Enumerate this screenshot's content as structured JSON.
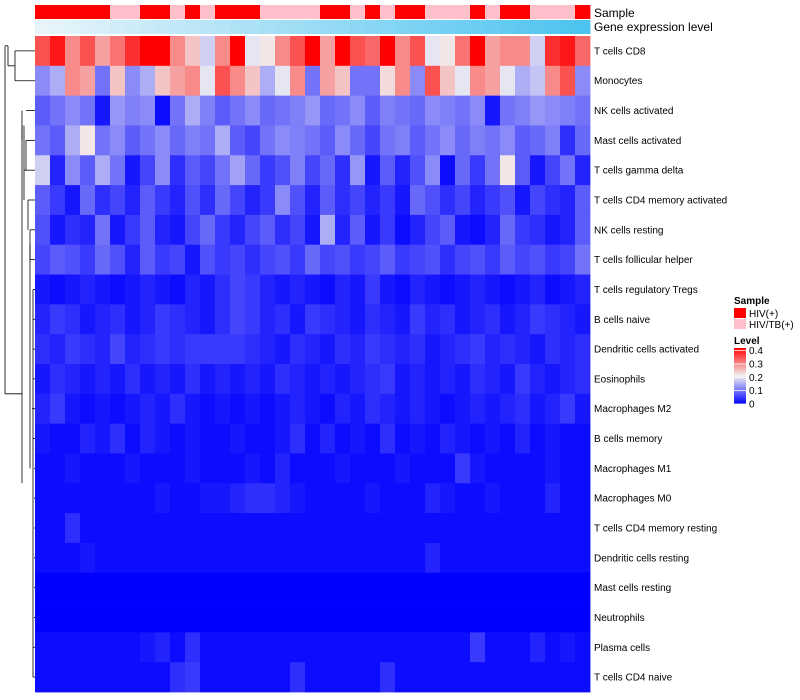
{
  "chart_data": {
    "type": "heatmap",
    "annotation_labels": [
      "Sample",
      "Gene expression level"
    ],
    "rows": [
      "T cells CD8",
      "Monocytes",
      "NK cells activated",
      "Mast cells activated",
      "T cells gamma delta",
      "T cells CD4 memory activated",
      "NK cells resting",
      "T cells follicular helper",
      "T cells regulatory  Tregs",
      "B cells naive",
      "Dendritic cells activated",
      "Eosinophils",
      "Macrophages M2",
      "B cells memory",
      "Macrophages M1",
      "Macrophages M0",
      "T cells CD4 memory resting",
      "Dendritic cells resting",
      "Mast cells resting",
      "Neutrophils",
      "Plasma cells",
      "T cells CD4 naive"
    ],
    "n_columns": 37,
    "sample_groups": [
      "HIV(+)",
      "HIV(+)",
      "HIV(+)",
      "HIV(+)",
      "HIV(+)",
      "HIV/TB(+)",
      "HIV/TB(+)",
      "HIV(+)",
      "HIV(+)",
      "HIV/TB(+)",
      "HIV(+)",
      "HIV/TB(+)",
      "HIV(+)",
      "HIV(+)",
      "HIV(+)",
      "HIV/TB(+)",
      "HIV/TB(+)",
      "HIV/TB(+)",
      "HIV/TB(+)",
      "HIV(+)",
      "HIV(+)",
      "HIV/TB(+)",
      "HIV(+)",
      "HIV/TB(+)",
      "HIV(+)",
      "HIV(+)",
      "HIV/TB(+)",
      "HIV/TB(+)",
      "HIV/TB(+)",
      "HIV(+)",
      "HIV/TB(+)",
      "HIV(+)",
      "HIV(+)",
      "HIV/TB(+)",
      "HIV/TB(+)",
      "HIV/TB(+)",
      "HIV(+)"
    ],
    "values": [
      [
        0.35,
        0.4,
        0.3,
        0.35,
        0.28,
        0.32,
        0.38,
        0.42,
        0.42,
        0.3,
        0.25,
        0.18,
        0.3,
        0.42,
        0.2,
        0.22,
        0.3,
        0.35,
        0.42,
        0.28,
        0.42,
        0.35,
        0.33,
        0.42,
        0.3,
        0.35,
        0.2,
        0.22,
        0.32,
        0.42,
        0.28,
        0.3,
        0.3,
        0.18,
        0.38,
        0.4,
        0.33
      ],
      [
        0.12,
        0.15,
        0.3,
        0.28,
        0.1,
        0.25,
        0.12,
        0.15,
        0.25,
        0.28,
        0.3,
        0.2,
        0.35,
        0.3,
        0.25,
        0.15,
        0.2,
        0.3,
        0.1,
        0.28,
        0.25,
        0.1,
        0.1,
        0.23,
        0.3,
        0.12,
        0.35,
        0.25,
        0.2,
        0.3,
        0.28,
        0.2,
        0.15,
        0.17,
        0.3,
        0.35,
        0.12
      ],
      [
        0.08,
        0.1,
        0.12,
        0.1,
        0.02,
        0.13,
        0.11,
        0.12,
        0.01,
        0.1,
        0.15,
        0.11,
        0.08,
        0.1,
        0.12,
        0.09,
        0.1,
        0.11,
        0.13,
        0.09,
        0.1,
        0.12,
        0.08,
        0.11,
        0.1,
        0.09,
        0.12,
        0.11,
        0.1,
        0.12,
        0.02,
        0.1,
        0.11,
        0.13,
        0.12,
        0.11,
        0.1
      ],
      [
        0.1,
        0.08,
        0.15,
        0.22,
        0.1,
        0.12,
        0.08,
        0.1,
        0.12,
        0.09,
        0.11,
        0.1,
        0.15,
        0.08,
        0.06,
        0.1,
        0.12,
        0.11,
        0.1,
        0.08,
        0.12,
        0.09,
        0.06,
        0.1,
        0.11,
        0.08,
        0.1,
        0.12,
        0.09,
        0.11,
        0.1,
        0.12,
        0.08,
        0.09,
        0.11,
        0.04,
        0.09
      ],
      [
        0.18,
        0.03,
        0.12,
        0.08,
        0.15,
        0.1,
        0.02,
        0.06,
        0.12,
        0.04,
        0.08,
        0.06,
        0.1,
        0.14,
        0.09,
        0.05,
        0.07,
        0.11,
        0.06,
        0.09,
        0.04,
        0.13,
        0.02,
        0.08,
        0.03,
        0.07,
        0.12,
        0.01,
        0.09,
        0.05,
        0.1,
        0.22,
        0.08,
        0.02,
        0.06,
        0.1,
        0.03
      ],
      [
        0.08,
        0.05,
        0.02,
        0.09,
        0.04,
        0.06,
        0.03,
        0.08,
        0.05,
        0.03,
        0.07,
        0.04,
        0.09,
        0.06,
        0.03,
        0.05,
        0.12,
        0.07,
        0.03,
        0.08,
        0.04,
        0.06,
        0.03,
        0.05,
        0.02,
        0.09,
        0.07,
        0.04,
        0.06,
        0.03,
        0.05,
        0.07,
        0.02,
        0.06,
        0.04,
        0.03,
        0.08
      ],
      [
        0.07,
        0.02,
        0.04,
        0.03,
        0.1,
        0.02,
        0.05,
        0.08,
        0.03,
        0.02,
        0.06,
        0.09,
        0.05,
        0.03,
        0.06,
        0.08,
        0.04,
        0.06,
        0.02,
        0.15,
        0.03,
        0.08,
        0.02,
        0.05,
        0.01,
        0.03,
        0.06,
        0.08,
        0.02,
        0.01,
        0.03,
        0.09,
        0.05,
        0.04,
        0.02,
        0.03,
        0.08
      ],
      [
        0.06,
        0.08,
        0.07,
        0.05,
        0.09,
        0.07,
        0.03,
        0.08,
        0.05,
        0.06,
        0.02,
        0.07,
        0.05,
        0.06,
        0.04,
        0.06,
        0.07,
        0.05,
        0.09,
        0.06,
        0.07,
        0.05,
        0.06,
        0.08,
        0.05,
        0.06,
        0.07,
        0.04,
        0.06,
        0.07,
        0.05,
        0.08,
        0.06,
        0.07,
        0.05,
        0.06,
        0.1
      ],
      [
        0.02,
        0.01,
        0.02,
        0.03,
        0.02,
        0.01,
        0.02,
        0.03,
        0.02,
        0.01,
        0.03,
        0.02,
        0.04,
        0.06,
        0.05,
        0.03,
        0.02,
        0.03,
        0.02,
        0.01,
        0.03,
        0.02,
        0.05,
        0.02,
        0.01,
        0.03,
        0.02,
        0.01,
        0.02,
        0.03,
        0.02,
        0.01,
        0.02,
        0.03,
        0.01,
        0.02,
        0.03
      ],
      [
        0.03,
        0.05,
        0.04,
        0.02,
        0.03,
        0.04,
        0.02,
        0.03,
        0.05,
        0.04,
        0.03,
        0.02,
        0.04,
        0.06,
        0.05,
        0.03,
        0.04,
        0.02,
        0.05,
        0.04,
        0.03,
        0.02,
        0.04,
        0.03,
        0.02,
        0.05,
        0.03,
        0.04,
        0.02,
        0.03,
        0.04,
        0.02,
        0.03,
        0.05,
        0.04,
        0.03,
        0.02
      ],
      [
        0.04,
        0.03,
        0.05,
        0.04,
        0.03,
        0.06,
        0.03,
        0.04,
        0.05,
        0.04,
        0.05,
        0.05,
        0.05,
        0.05,
        0.04,
        0.03,
        0.02,
        0.04,
        0.03,
        0.02,
        0.04,
        0.03,
        0.05,
        0.04,
        0.03,
        0.04,
        0.02,
        0.03,
        0.04,
        0.05,
        0.03,
        0.04,
        0.03,
        0.02,
        0.04,
        0.03,
        0.04
      ],
      [
        0.02,
        0.04,
        0.03,
        0.02,
        0.03,
        0.02,
        0.04,
        0.02,
        0.03,
        0.02,
        0.04,
        0.02,
        0.03,
        0.02,
        0.03,
        0.02,
        0.04,
        0.03,
        0.02,
        0.03,
        0.02,
        0.03,
        0.04,
        0.05,
        0.02,
        0.03,
        0.02,
        0.03,
        0.02,
        0.04,
        0.03,
        0.02,
        0.05,
        0.03,
        0.02,
        0.03,
        0.04
      ],
      [
        0.03,
        0.05,
        0.02,
        0.01,
        0.02,
        0.01,
        0.02,
        0.03,
        0.02,
        0.04,
        0.02,
        0.01,
        0.02,
        0.01,
        0.02,
        0.01,
        0.02,
        0.03,
        0.02,
        0.01,
        0.03,
        0.02,
        0.04,
        0.03,
        0.02,
        0.03,
        0.02,
        0.01,
        0.02,
        0.03,
        0.02,
        0.03,
        0.04,
        0.02,
        0.03,
        0.05,
        0.02
      ],
      [
        0.02,
        0.01,
        0.01,
        0.03,
        0.02,
        0.04,
        0.01,
        0.03,
        0.02,
        0.01,
        0.02,
        0.01,
        0.01,
        0.02,
        0.01,
        0.01,
        0.02,
        0.04,
        0.01,
        0.03,
        0.01,
        0.02,
        0.01,
        0.04,
        0.01,
        0.02,
        0.01,
        0.03,
        0.02,
        0.01,
        0.02,
        0.01,
        0.03,
        0.01,
        0.02,
        0.01,
        0.01
      ],
      [
        0.01,
        0.01,
        0.02,
        0.01,
        0.01,
        0.01,
        0.02,
        0.01,
        0.01,
        0.01,
        0.02,
        0.01,
        0.01,
        0.01,
        0.02,
        0.01,
        0.03,
        0.01,
        0.01,
        0.01,
        0.02,
        0.01,
        0.01,
        0.01,
        0.02,
        0.01,
        0.01,
        0.01,
        0.05,
        0.02,
        0.01,
        0.01,
        0.01,
        0.01,
        0.02,
        0.01,
        0.01
      ],
      [
        0.01,
        0.01,
        0.01,
        0.01,
        0.01,
        0.01,
        0.01,
        0.01,
        0.02,
        0.01,
        0.01,
        0.02,
        0.02,
        0.03,
        0.04,
        0.04,
        0.03,
        0.02,
        0.01,
        0.01,
        0.01,
        0.01,
        0.02,
        0.01,
        0.01,
        0.01,
        0.03,
        0.02,
        0.01,
        0.01,
        0.02,
        0.01,
        0.01,
        0.01,
        0.03,
        0.01,
        0.01
      ],
      [
        0.01,
        0.01,
        0.04,
        0.01,
        0.01,
        0.01,
        0.01,
        0.01,
        0.01,
        0.01,
        0.01,
        0.01,
        0.01,
        0.01,
        0.01,
        0.01,
        0.01,
        0.01,
        0.01,
        0.01,
        0.01,
        0.01,
        0.01,
        0.01,
        0.01,
        0.01,
        0.01,
        0.01,
        0.01,
        0.01,
        0.01,
        0.01,
        0.01,
        0.01,
        0.01,
        0.01,
        0.01
      ],
      [
        0.01,
        0.01,
        0.01,
        0.02,
        0.01,
        0.01,
        0.01,
        0.01,
        0.01,
        0.01,
        0.01,
        0.01,
        0.01,
        0.01,
        0.01,
        0.01,
        0.01,
        0.01,
        0.01,
        0.01,
        0.01,
        0.01,
        0.01,
        0.01,
        0.01,
        0.01,
        0.03,
        0.01,
        0.01,
        0.01,
        0.01,
        0.01,
        0.01,
        0.01,
        0.01,
        0.01,
        0.01
      ],
      [
        0.0,
        0.0,
        0.0,
        0.0,
        0.0,
        0.0,
        0.0,
        0.0,
        0.0,
        0.0,
        0.0,
        0.0,
        0.0,
        0.0,
        0.0,
        0.0,
        0.0,
        0.0,
        0.0,
        0.0,
        0.0,
        0.0,
        0.0,
        0.0,
        0.0,
        0.0,
        0.0,
        0.0,
        0.0,
        0.0,
        0.0,
        0.0,
        0.0,
        0.0,
        0.0,
        0.0,
        0.0
      ],
      [
        0.0,
        0.0,
        0.0,
        0.0,
        0.0,
        0.0,
        0.0,
        0.0,
        0.0,
        0.0,
        0.0,
        0.0,
        0.0,
        0.0,
        0.0,
        0.0,
        0.0,
        0.0,
        0.0,
        0.0,
        0.0,
        0.0,
        0.0,
        0.0,
        0.0,
        0.0,
        0.0,
        0.0,
        0.0,
        0.0,
        0.0,
        0.0,
        0.0,
        0.0,
        0.0,
        0.0,
        0.0
      ],
      [
        0.01,
        0.01,
        0.01,
        0.01,
        0.01,
        0.01,
        0.01,
        0.02,
        0.03,
        0.01,
        0.04,
        0.01,
        0.01,
        0.01,
        0.01,
        0.01,
        0.01,
        0.01,
        0.01,
        0.01,
        0.01,
        0.01,
        0.01,
        0.01,
        0.01,
        0.01,
        0.01,
        0.01,
        0.01,
        0.05,
        0.01,
        0.01,
        0.01,
        0.03,
        0.01,
        0.02,
        0.01
      ],
      [
        0.01,
        0.01,
        0.01,
        0.01,
        0.01,
        0.01,
        0.01,
        0.01,
        0.01,
        0.04,
        0.05,
        0.01,
        0.01,
        0.01,
        0.01,
        0.01,
        0.01,
        0.04,
        0.01,
        0.01,
        0.01,
        0.01,
        0.01,
        0.04,
        0.01,
        0.01,
        0.01,
        0.01,
        0.01,
        0.01,
        0.01,
        0.01,
        0.01,
        0.01,
        0.01,
        0.01,
        0.01
      ]
    ],
    "dendrogram_order_note": "",
    "legend": {
      "sample_title": "Sample",
      "sample_entries": [
        {
          "label": "HIV(+)",
          "color": "#ff0000"
        },
        {
          "label": "HIV/TB(+)",
          "color": "#ffc0cb"
        }
      ],
      "level_title": "Level",
      "level_ticks": [
        "0.4",
        "0.3",
        "0.2",
        "0.1",
        "0"
      ],
      "level_tick_values": [
        0.4,
        0.3,
        0.2,
        0.1,
        0.0
      ],
      "level_range": [
        0,
        0.42
      ]
    },
    "colors": {
      "low": "#0000ff",
      "mid": "#f2f2f2",
      "high": "#ff0000",
      "hiv": "#ff0000",
      "hivtb": "#ffc0cb",
      "expr_low": "#e8f4fa",
      "expr_high": "#4dc3f0"
    }
  }
}
